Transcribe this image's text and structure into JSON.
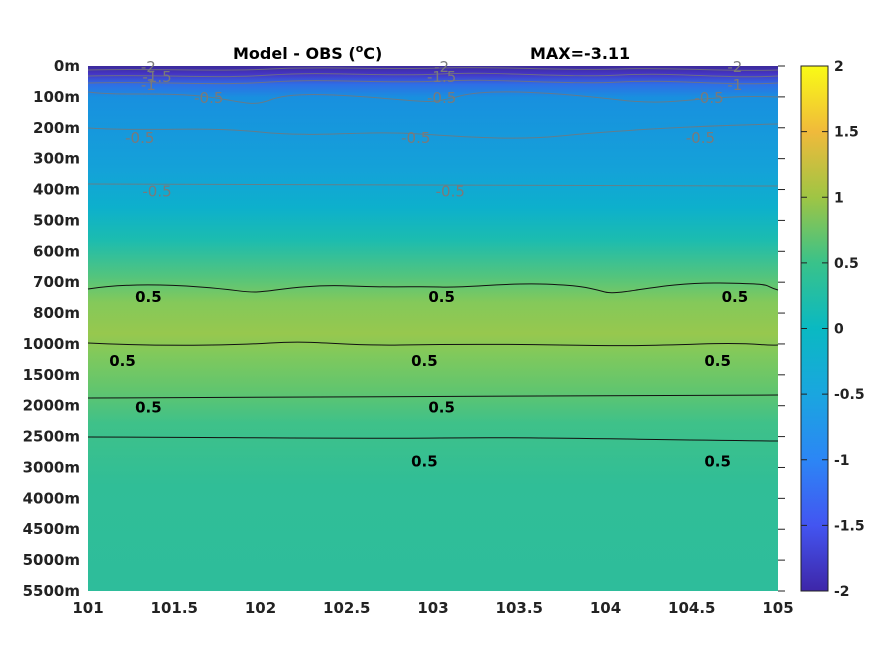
{
  "chart_data": {
    "type": "heatmap",
    "title_left": "Model - OBS (",
    "title_degree": "o",
    "title_unit": "C)",
    "title_right": "MAX=-3.11",
    "x_ticks": [
      "101",
      "101.5",
      "102",
      "102.5",
      "103",
      "103.5",
      "104",
      "104.5",
      "105"
    ],
    "xlim": [
      101,
      105
    ],
    "y_ticks": [
      "0m",
      "100m",
      "200m",
      "300m",
      "400m",
      "500m",
      "600m",
      "700m",
      "800m",
      "1000m",
      "1500m",
      "2000m",
      "2500m",
      "3000m",
      "4000m",
      "4500m",
      "5000m",
      "5500m"
    ],
    "colorbar": {
      "ticks": [
        "2",
        "1.5",
        "1",
        "0.5",
        "0",
        "-0.5",
        "-1",
        "-1.5",
        "-2"
      ],
      "range": [
        -2,
        2
      ]
    },
    "depth_profile": {
      "depths": [
        "0m",
        "100m",
        "200m",
        "300m",
        "400m",
        "500m",
        "600m",
        "700m",
        "800m",
        "1000m",
        "1500m",
        "2000m",
        "2500m",
        "3000m",
        "4000m",
        "4500m",
        "5000m",
        "5500m"
      ],
      "values": [
        -2.0,
        -0.8,
        -0.65,
        -0.6,
        -0.5,
        -0.3,
        -0.05,
        0.35,
        0.7,
        0.9,
        0.75,
        0.55,
        0.45,
        0.35,
        0.3,
        0.3,
        0.3,
        0.3
      ]
    },
    "contour_labels": [
      {
        "text": "-2",
        "lon": 101.35,
        "level": "0m"
      },
      {
        "text": "-1.5",
        "lon": 101.4,
        "level": "0m"
      },
      {
        "text": "-1",
        "lon": 101.35,
        "level": "0m"
      },
      {
        "text": "-0.5",
        "lon": 101.7,
        "level": "100m"
      },
      {
        "text": "-2",
        "lon": 103.05,
        "level": "0m"
      },
      {
        "text": "-1.5",
        "lon": 103.05,
        "level": "0m"
      },
      {
        "text": "-0.5",
        "lon": 103.05,
        "level": "100m"
      },
      {
        "text": "-2",
        "lon": 104.75,
        "level": "0m"
      },
      {
        "text": "-0.5",
        "lon": 104.6,
        "level": "100m"
      },
      {
        "text": "-1",
        "lon": 104.75,
        "level": "0m"
      },
      {
        "text": "-0.5",
        "lon": 101.3,
        "level": "200m"
      },
      {
        "text": "-0.5",
        "lon": 102.9,
        "level": "200m"
      },
      {
        "text": "-0.5",
        "lon": 104.55,
        "level": "200m"
      },
      {
        "text": "-0.5",
        "lon": 101.4,
        "level": "400m"
      },
      {
        "text": "-0.5",
        "lon": 103.1,
        "level": "400m"
      },
      {
        "text": "0.5",
        "lon": 101.35,
        "level": "700m"
      },
      {
        "text": "0.5",
        "lon": 103.05,
        "level": "700m"
      },
      {
        "text": "0.5",
        "lon": 104.75,
        "level": "700m"
      },
      {
        "text": "0.5",
        "lon": 101.2,
        "level": "1000m"
      },
      {
        "text": "0.5",
        "lon": 102.95,
        "level": "1000m"
      },
      {
        "text": "0.5",
        "lon": 104.65,
        "level": "1000m"
      },
      {
        "text": "0.5",
        "lon": 101.35,
        "level": "2000m"
      },
      {
        "text": "0.5",
        "lon": 103.05,
        "level": "2000m"
      },
      {
        "text": "0.5",
        "lon": 102.95,
        "level": "3000m"
      },
      {
        "text": "0.5",
        "lon": 104.65,
        "level": "3000m"
      }
    ]
  }
}
